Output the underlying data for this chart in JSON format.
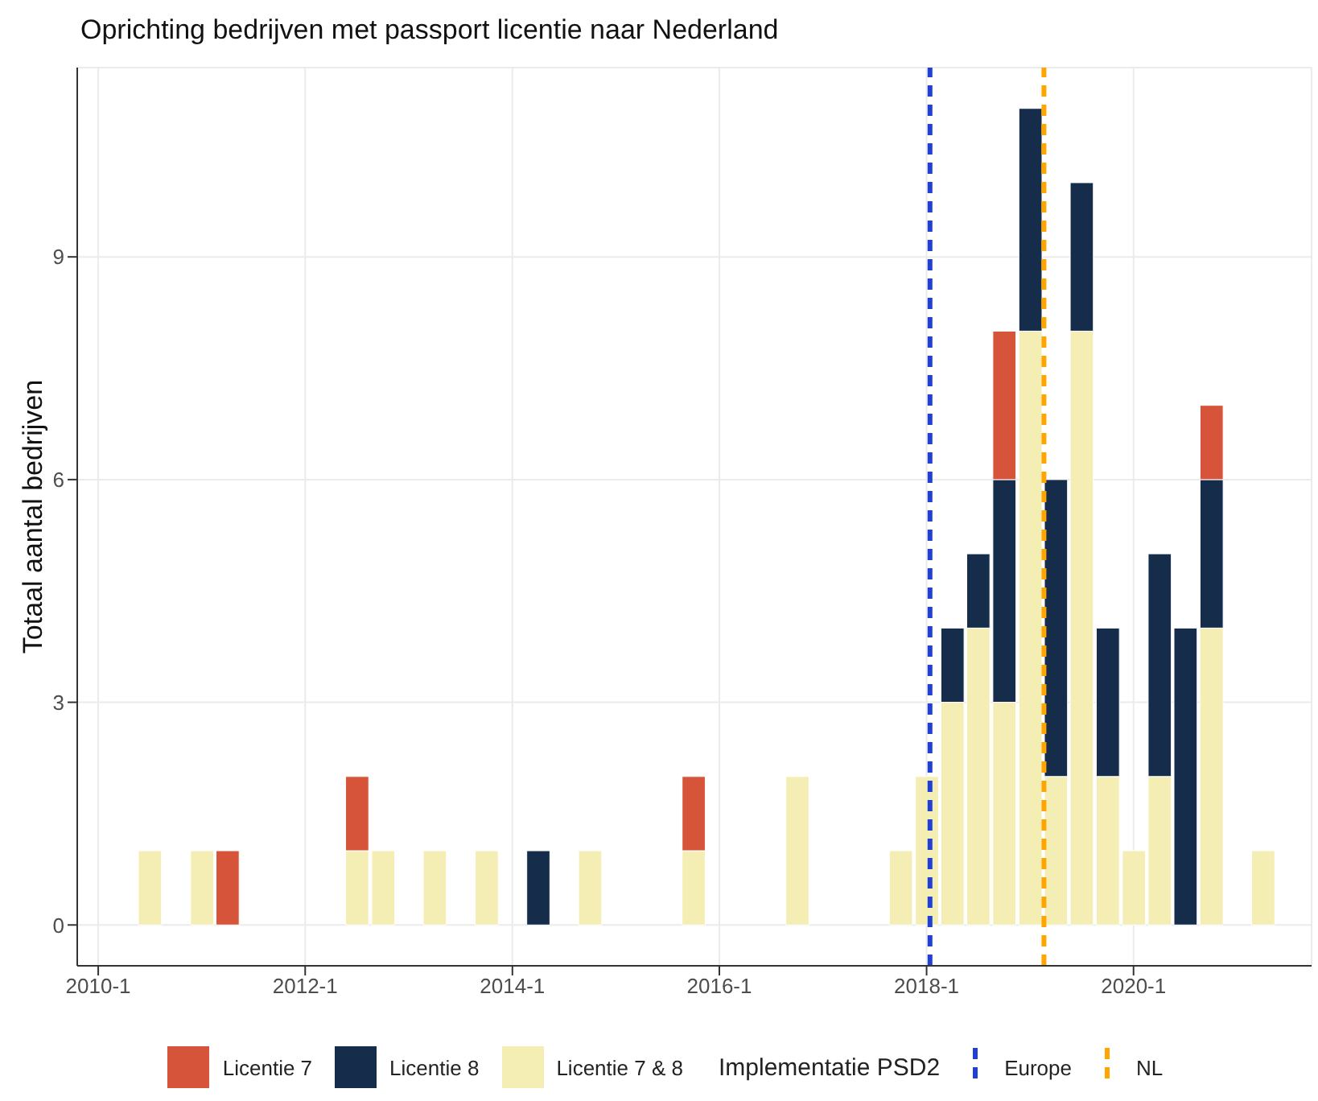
{
  "chart_data": {
    "type": "bar",
    "title": "Oprichting bedrijven met passport licentie naar Nederland",
    "ylabel": "Totaal aantal bedrijven",
    "legend_title": "Implementatie PSD2",
    "stacked": true,
    "x": [
      "2010-07",
      "2011-01",
      "2011-04",
      "2012-07",
      "2012-10",
      "2013-04",
      "2013-10",
      "2014-04",
      "2014-10",
      "2015-10",
      "2016-10",
      "2017-10",
      "2018-01",
      "2018-04",
      "2018-07",
      "2018-10",
      "2019-01",
      "2019-04",
      "2019-07",
      "2019-10",
      "2020-01",
      "2020-04",
      "2020-07",
      "2020-10",
      "2021-04"
    ],
    "series": [
      {
        "name": "Licentie 7 & 8",
        "color": "#f5eeb4",
        "values": [
          1,
          1,
          null,
          1,
          1,
          1,
          1,
          null,
          1,
          1,
          2,
          1,
          2,
          3,
          4,
          3,
          8,
          2,
          8,
          2,
          1,
          2,
          null,
          4,
          1
        ]
      },
      {
        "name": "Licentie 8",
        "color": "#152d4b",
        "values": [
          null,
          null,
          null,
          null,
          null,
          null,
          null,
          1,
          null,
          null,
          null,
          null,
          null,
          1,
          1,
          3,
          3,
          4,
          2,
          2,
          null,
          3,
          4,
          2,
          null
        ]
      },
      {
        "name": "Licentie 7",
        "color": "#d6553a",
        "values": [
          null,
          null,
          1,
          1,
          null,
          null,
          null,
          null,
          null,
          1,
          null,
          null,
          null,
          null,
          null,
          2,
          null,
          null,
          null,
          null,
          null,
          null,
          null,
          1,
          null
        ]
      }
    ],
    "xlim": [
      "2009-10-19",
      "2021-09-20"
    ],
    "xticks": [
      {
        "value": "2010-01",
        "label": "2010-1"
      },
      {
        "value": "2012-01",
        "label": "2012-1"
      },
      {
        "value": "2014-01",
        "label": "2014-1"
      },
      {
        "value": "2016-01",
        "label": "2016-1"
      },
      {
        "value": "2018-01",
        "label": "2018-1"
      },
      {
        "value": "2020-01",
        "label": "2020-1"
      }
    ],
    "ylim": [
      -0.55,
      11.55
    ],
    "yticks": [
      0,
      3,
      6,
      9
    ],
    "ref_lines": [
      {
        "axis": "x",
        "value": "2018-01-13",
        "label": "Europe",
        "color": "#1f3fd6",
        "line_style": "dashed"
      },
      {
        "axis": "x",
        "value": "2019-02-19",
        "label": "NL",
        "color": "#ffa500",
        "line_style": "dashed"
      }
    ],
    "grid": true,
    "legend": "bottom"
  }
}
